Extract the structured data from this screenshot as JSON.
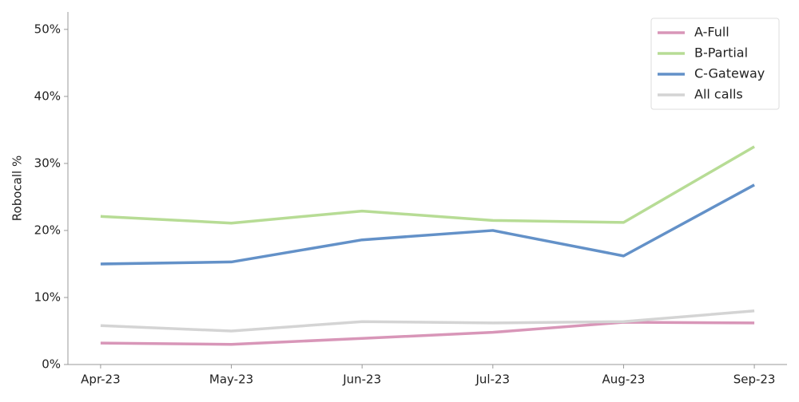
{
  "chart_data": {
    "type": "line",
    "y_label": "Robocall %",
    "categories": [
      "Apr-23",
      "May-23",
      "Jun-23",
      "Jul-23",
      "Aug-23",
      "Sep-23"
    ],
    "series": [
      {
        "name": "A-Full",
        "color": "#d896b8",
        "values": [
          3.2,
          3.0,
          3.9,
          4.8,
          6.3,
          6.2
        ]
      },
      {
        "name": "B-Partial",
        "color": "#b7dc95",
        "values": [
          22.1,
          21.1,
          22.9,
          21.5,
          21.2,
          32.5
        ]
      },
      {
        "name": "C-Gateway",
        "color": "#6391c8",
        "values": [
          15.0,
          15.3,
          18.6,
          20.0,
          16.2,
          26.8
        ]
      },
      {
        "name": "All calls",
        "color": "#d4d4d4",
        "values": [
          5.8,
          5.0,
          6.4,
          6.2,
          6.4,
          8.0
        ]
      }
    ],
    "ylim": [
      0,
      52.6
    ],
    "yticks": [
      {
        "value": 0,
        "label": "0%"
      },
      {
        "value": 10,
        "label": "10%"
      },
      {
        "value": 20,
        "label": "20%"
      },
      {
        "value": 30,
        "label": "30%"
      },
      {
        "value": 40,
        "label": "40%"
      },
      {
        "value": 50,
        "label": "50%"
      }
    ],
    "legend": "upper right",
    "grid": false
  }
}
